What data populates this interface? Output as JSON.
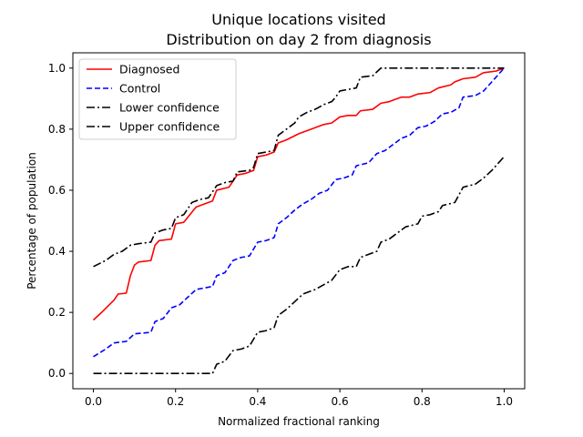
{
  "chart_data": {
    "type": "line",
    "title": "Unique locations visited",
    "subtitle": "Distribution on day 2 from diagnosis",
    "xlabel": "Normalized fractional ranking",
    "ylabel": "Percentage of population",
    "xlim": [
      -0.05,
      1.05
    ],
    "ylim": [
      -0.05,
      1.05
    ],
    "xticks": [
      0.0,
      0.2,
      0.4,
      0.6,
      0.8,
      1.0
    ],
    "xtick_labels": [
      "0.0",
      "0.2",
      "0.4",
      "0.6",
      "0.8",
      "1.0"
    ],
    "yticks": [
      0.0,
      0.2,
      0.4,
      0.6,
      0.8,
      1.0
    ],
    "ytick_labels": [
      "0.0",
      "0.2",
      "0.4",
      "0.6",
      "0.8",
      "1.0"
    ],
    "grid": false,
    "legend_position": "top-left",
    "series": [
      {
        "name": "Diagnosed",
        "color": "#ff0000",
        "dash": "solid",
        "points": [
          [
            0.0,
            0.175
          ],
          [
            0.02,
            0.2
          ],
          [
            0.05,
            0.24
          ],
          [
            0.06,
            0.26
          ],
          [
            0.08,
            0.263
          ],
          [
            0.09,
            0.32
          ],
          [
            0.1,
            0.355
          ],
          [
            0.11,
            0.365
          ],
          [
            0.14,
            0.37
          ],
          [
            0.15,
            0.42
          ],
          [
            0.16,
            0.435
          ],
          [
            0.19,
            0.44
          ],
          [
            0.2,
            0.49
          ],
          [
            0.22,
            0.495
          ],
          [
            0.25,
            0.545
          ],
          [
            0.29,
            0.565
          ],
          [
            0.3,
            0.6
          ],
          [
            0.33,
            0.61
          ],
          [
            0.35,
            0.65
          ],
          [
            0.37,
            0.655
          ],
          [
            0.39,
            0.665
          ],
          [
            0.4,
            0.71
          ],
          [
            0.42,
            0.715
          ],
          [
            0.44,
            0.725
          ],
          [
            0.45,
            0.755
          ],
          [
            0.47,
            0.765
          ],
          [
            0.5,
            0.785
          ],
          [
            0.53,
            0.8
          ],
          [
            0.55,
            0.81
          ],
          [
            0.56,
            0.815
          ],
          [
            0.58,
            0.82
          ],
          [
            0.6,
            0.84
          ],
          [
            0.62,
            0.845
          ],
          [
            0.64,
            0.845
          ],
          [
            0.65,
            0.86
          ],
          [
            0.68,
            0.865
          ],
          [
            0.7,
            0.885
          ],
          [
            0.72,
            0.89
          ],
          [
            0.75,
            0.905
          ],
          [
            0.77,
            0.905
          ],
          [
            0.79,
            0.915
          ],
          [
            0.82,
            0.92
          ],
          [
            0.84,
            0.935
          ],
          [
            0.87,
            0.945
          ],
          [
            0.88,
            0.955
          ],
          [
            0.9,
            0.965
          ],
          [
            0.93,
            0.97
          ],
          [
            0.95,
            0.985
          ],
          [
            0.98,
            0.99
          ],
          [
            1.0,
            1.0
          ]
        ]
      },
      {
        "name": "Control",
        "color": "#0000ff",
        "dash": "dashed",
        "points": [
          [
            0.0,
            0.055
          ],
          [
            0.03,
            0.08
          ],
          [
            0.05,
            0.1
          ],
          [
            0.08,
            0.105
          ],
          [
            0.1,
            0.13
          ],
          [
            0.12,
            0.132
          ],
          [
            0.14,
            0.135
          ],
          [
            0.15,
            0.17
          ],
          [
            0.17,
            0.18
          ],
          [
            0.19,
            0.215
          ],
          [
            0.21,
            0.225
          ],
          [
            0.23,
            0.25
          ],
          [
            0.25,
            0.275
          ],
          [
            0.27,
            0.28
          ],
          [
            0.29,
            0.285
          ],
          [
            0.3,
            0.32
          ],
          [
            0.32,
            0.33
          ],
          [
            0.34,
            0.37
          ],
          [
            0.36,
            0.38
          ],
          [
            0.38,
            0.385
          ],
          [
            0.4,
            0.43
          ],
          [
            0.42,
            0.435
          ],
          [
            0.44,
            0.445
          ],
          [
            0.45,
            0.49
          ],
          [
            0.47,
            0.51
          ],
          [
            0.49,
            0.535
          ],
          [
            0.51,
            0.555
          ],
          [
            0.53,
            0.57
          ],
          [
            0.55,
            0.59
          ],
          [
            0.57,
            0.6
          ],
          [
            0.59,
            0.635
          ],
          [
            0.61,
            0.64
          ],
          [
            0.63,
            0.65
          ],
          [
            0.64,
            0.68
          ],
          [
            0.67,
            0.69
          ],
          [
            0.69,
            0.72
          ],
          [
            0.71,
            0.73
          ],
          [
            0.73,
            0.75
          ],
          [
            0.75,
            0.77
          ],
          [
            0.77,
            0.78
          ],
          [
            0.79,
            0.805
          ],
          [
            0.81,
            0.81
          ],
          [
            0.83,
            0.825
          ],
          [
            0.85,
            0.85
          ],
          [
            0.87,
            0.855
          ],
          [
            0.89,
            0.87
          ],
          [
            0.9,
            0.905
          ],
          [
            0.93,
            0.91
          ],
          [
            0.95,
            0.925
          ],
          [
            0.97,
            0.955
          ],
          [
            1.0,
            1.0
          ]
        ]
      },
      {
        "name": "Lower confidence",
        "color": "#000000",
        "dash": "dashdot",
        "points": [
          [
            0.0,
            0.0
          ],
          [
            0.29,
            0.0
          ],
          [
            0.3,
            0.03
          ],
          [
            0.32,
            0.04
          ],
          [
            0.34,
            0.075
          ],
          [
            0.36,
            0.08
          ],
          [
            0.38,
            0.09
          ],
          [
            0.4,
            0.135
          ],
          [
            0.42,
            0.14
          ],
          [
            0.44,
            0.15
          ],
          [
            0.45,
            0.19
          ],
          [
            0.47,
            0.21
          ],
          [
            0.49,
            0.235
          ],
          [
            0.51,
            0.26
          ],
          [
            0.54,
            0.275
          ],
          [
            0.56,
            0.29
          ],
          [
            0.58,
            0.305
          ],
          [
            0.6,
            0.34
          ],
          [
            0.62,
            0.35
          ],
          [
            0.64,
            0.35
          ],
          [
            0.65,
            0.38
          ],
          [
            0.67,
            0.39
          ],
          [
            0.69,
            0.4
          ],
          [
            0.7,
            0.43
          ],
          [
            0.72,
            0.44
          ],
          [
            0.74,
            0.46
          ],
          [
            0.76,
            0.48
          ],
          [
            0.79,
            0.49
          ],
          [
            0.8,
            0.515
          ],
          [
            0.82,
            0.52
          ],
          [
            0.84,
            0.53
          ],
          [
            0.85,
            0.55
          ],
          [
            0.88,
            0.56
          ],
          [
            0.9,
            0.61
          ],
          [
            0.93,
            0.62
          ],
          [
            0.95,
            0.64
          ],
          [
            0.97,
            0.665
          ],
          [
            1.0,
            0.71
          ]
        ]
      },
      {
        "name": "Upper confidence",
        "color": "#000000",
        "dash": "dashdot",
        "points": [
          [
            0.0,
            0.35
          ],
          [
            0.03,
            0.37
          ],
          [
            0.05,
            0.39
          ],
          [
            0.07,
            0.4
          ],
          [
            0.09,
            0.42
          ],
          [
            0.11,
            0.425
          ],
          [
            0.14,
            0.43
          ],
          [
            0.15,
            0.46
          ],
          [
            0.17,
            0.47
          ],
          [
            0.19,
            0.475
          ],
          [
            0.2,
            0.51
          ],
          [
            0.22,
            0.52
          ],
          [
            0.24,
            0.56
          ],
          [
            0.26,
            0.57
          ],
          [
            0.28,
            0.575
          ],
          [
            0.3,
            0.615
          ],
          [
            0.32,
            0.625
          ],
          [
            0.34,
            0.63
          ],
          [
            0.35,
            0.66
          ],
          [
            0.38,
            0.665
          ],
          [
            0.39,
            0.675
          ],
          [
            0.4,
            0.72
          ],
          [
            0.42,
            0.725
          ],
          [
            0.44,
            0.73
          ],
          [
            0.45,
            0.78
          ],
          [
            0.47,
            0.8
          ],
          [
            0.49,
            0.82
          ],
          [
            0.5,
            0.84
          ],
          [
            0.52,
            0.855
          ],
          [
            0.54,
            0.865
          ],
          [
            0.56,
            0.88
          ],
          [
            0.58,
            0.89
          ],
          [
            0.59,
            0.905
          ],
          [
            0.6,
            0.925
          ],
          [
            0.62,
            0.93
          ],
          [
            0.64,
            0.935
          ],
          [
            0.65,
            0.97
          ],
          [
            0.68,
            0.975
          ],
          [
            0.7,
            1.0
          ],
          [
            1.0,
            1.0
          ]
        ]
      }
    ]
  }
}
